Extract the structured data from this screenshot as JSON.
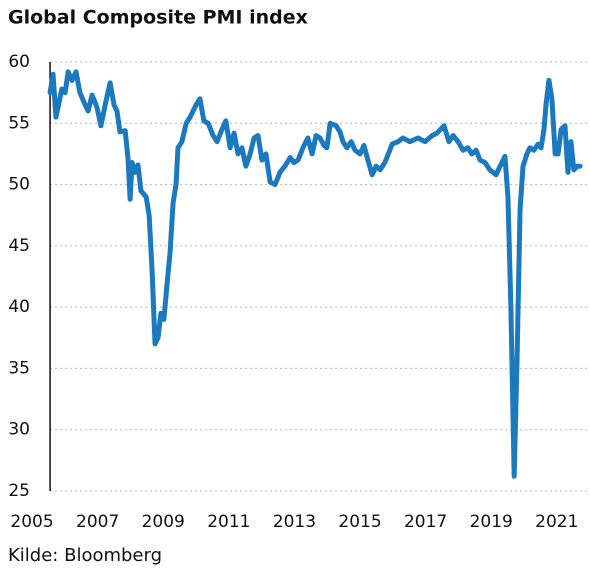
{
  "chart_data": {
    "type": "line",
    "title": "Global Composite PMI index",
    "source": "Kilde: Bloomberg",
    "color": "#1b7abf",
    "grid": true,
    "xlim": [
      2004.45,
      2022.0
    ],
    "xticks": [
      2005,
      2007,
      2009,
      2011,
      2013,
      2015,
      2017,
      2019,
      2021
    ],
    "ylim": [
      25,
      60
    ],
    "yticks": [
      25,
      30,
      35,
      40,
      45,
      50,
      55,
      60
    ],
    "x": [
      2005.55,
      2005.64,
      2005.73,
      2005.91,
      2006.01,
      2006.1,
      2006.22,
      2006.34,
      2006.46,
      2006.62,
      2006.71,
      2006.83,
      2006.98,
      2007.1,
      2007.23,
      2007.38,
      2007.5,
      2007.59,
      2007.68,
      2007.84,
      2007.93,
      2007.99,
      2008.05,
      2008.14,
      2008.23,
      2008.32,
      2008.48,
      2008.57,
      2008.66,
      2008.75,
      2008.84,
      2008.93,
      2009.02,
      2009.12,
      2009.21,
      2009.3,
      2009.39,
      2009.45,
      2009.57,
      2009.7,
      2009.82,
      2010.0,
      2010.12,
      2010.24,
      2010.37,
      2010.52,
      2010.64,
      2010.79,
      2010.91,
      2011.04,
      2011.16,
      2011.28,
      2011.4,
      2011.52,
      2011.65,
      2011.77,
      2011.89,
      2012.01,
      2012.13,
      2012.26,
      2012.41,
      2012.56,
      2012.71,
      2012.87,
      2012.99,
      2013.11,
      2013.26,
      2013.41,
      2013.54,
      2013.66,
      2013.78,
      2013.9,
      2013.99,
      2014.09,
      2014.27,
      2014.39,
      2014.48,
      2014.6,
      2014.73,
      2014.85,
      2015.0,
      2015.12,
      2015.24,
      2015.37,
      2015.49,
      2015.61,
      2015.76,
      2015.98,
      2016.16,
      2016.31,
      2016.52,
      2016.77,
      2016.98,
      2017.2,
      2017.35,
      2017.56,
      2017.71,
      2017.84,
      2017.99,
      2018.14,
      2018.29,
      2018.41,
      2018.54,
      2018.66,
      2018.81,
      2018.96,
      2019.15,
      2019.27,
      2019.42,
      2019.51,
      2019.6,
      2019.7,
      2019.79,
      2019.88,
      2019.97,
      2020.09,
      2020.18,
      2020.3,
      2020.43,
      2020.52,
      2020.61,
      2020.67,
      2020.76,
      2020.85,
      2020.95,
      2021.04,
      2021.13,
      2021.25,
      2021.34,
      2021.43,
      2021.52,
      2021.62,
      2021.71
    ],
    "values": [
      57.5,
      59,
      55.5,
      57.8,
      57.5,
      59.2,
      58.5,
      59.2,
      57.5,
      56.5,
      56,
      57.3,
      56.3,
      54.8,
      56.5,
      58.3,
      56.5,
      56,
      54.3,
      54.4,
      52,
      48.8,
      51.8,
      51,
      51.6,
      49.5,
      49,
      47.5,
      43,
      37,
      37.5,
      39.5,
      39,
      42,
      44.5,
      48.5,
      50,
      53,
      53.5,
      55,
      55.5,
      56.5,
      57,
      55.2,
      55,
      54,
      53.5,
      54.5,
      55.2,
      53,
      54.2,
      52.5,
      53,
      51.5,
      52.5,
      53.8,
      54,
      52,
      52.5,
      50.2,
      50,
      51,
      51.5,
      52.2,
      51.8,
      52,
      53,
      53.8,
      52.5,
      54,
      53.8,
      53.2,
      53,
      55,
      54.8,
      54.3,
      53.5,
      53,
      53.5,
      52.8,
      52.5,
      53.2,
      52,
      50.8,
      51.5,
      51.2,
      51.8,
      53.3,
      53.5,
      53.8,
      53.5,
      53.8,
      53.5,
      54,
      54.2,
      54.8,
      53.5,
      54,
      53.5,
      52.8,
      53,
      52.5,
      52.8,
      52,
      51.8,
      51.2,
      50.8,
      51.5,
      52.3,
      49,
      40,
      26.2,
      36,
      48,
      51.5,
      52.5,
      53,
      52.8,
      53.3,
      53,
      54.5,
      56.5,
      58.5,
      57,
      52.5,
      52.5,
      54.5,
      54.8,
      51,
      53.5,
      51.2,
      51.5,
      51.5
    ]
  }
}
